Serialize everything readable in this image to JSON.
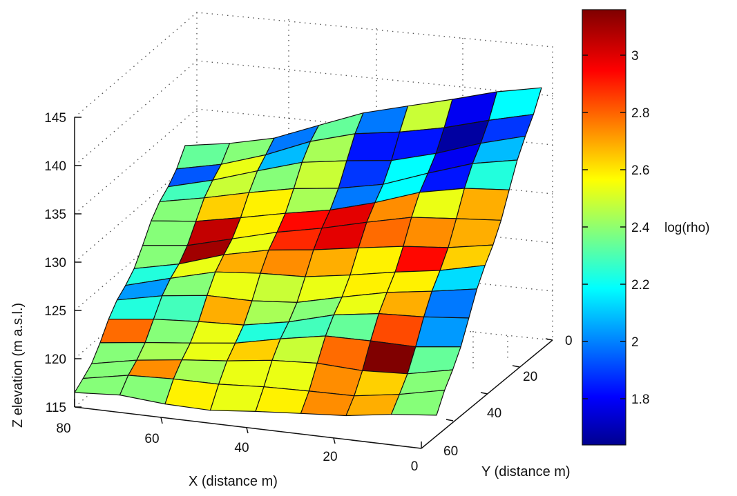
{
  "chart_data": {
    "type": "surface",
    "xlabel": "X (distance m)",
    "ylabel": "Y (distance m)",
    "zlabel": "Z elevation (m a.s.l.)",
    "colorbar_label": "log(rho)",
    "colormap": "jet",
    "x_ticks": [
      "80",
      "60",
      "40",
      "20",
      "0"
    ],
    "y_ticks": [
      "0",
      "20",
      "40",
      "60"
    ],
    "z_ticks": [
      "145",
      "140",
      "135",
      "130",
      "125",
      "120",
      "115"
    ],
    "colorbar_ticks": [
      "3",
      "2.8",
      "2.6",
      "2.4",
      "2.2",
      "2",
      "1.8"
    ],
    "xlim": [
      0,
      80
    ],
    "ylim": [
      0,
      60
    ],
    "zlim": [
      115,
      145
    ],
    "clim": [
      1.63,
      3.15
    ],
    "grid": true,
    "surface": {
      "rows": 13,
      "cols": 8,
      "note_rows": "row 0 = top (high Z, back), row 12 = bottom (low Z, front)",
      "log_rho": [
        [
          2.35,
          2.4,
          2.0,
          2.35,
          2.0,
          2.5,
          1.8,
          2.2
        ],
        [
          1.95,
          2.55,
          2.1,
          2.45,
          1.85,
          1.85,
          1.68,
          1.9
        ],
        [
          2.3,
          2.5,
          2.4,
          2.5,
          1.9,
          2.2,
          1.8,
          2.1
        ],
        [
          2.4,
          2.65,
          2.6,
          2.45,
          2.0,
          2.2,
          1.85,
          2.25
        ],
        [
          2.4,
          3.05,
          2.6,
          2.95,
          3.0,
          2.75,
          2.55,
          2.7
        ],
        [
          2.4,
          3.1,
          2.55,
          2.9,
          3.0,
          2.8,
          2.75,
          2.7
        ],
        [
          2.25,
          2.55,
          2.7,
          2.75,
          2.7,
          2.6,
          2.95,
          2.65
        ],
        [
          2.05,
          2.4,
          2.55,
          2.5,
          2.55,
          2.6,
          2.6,
          2.15
        ],
        [
          2.25,
          2.3,
          2.7,
          2.45,
          2.4,
          2.55,
          2.7,
          2.0
        ],
        [
          2.8,
          2.4,
          2.55,
          2.25,
          2.3,
          2.35,
          2.85,
          2.05
        ],
        [
          2.4,
          2.45,
          2.55,
          2.65,
          2.5,
          2.8,
          3.15,
          2.35
        ],
        [
          2.4,
          2.75,
          2.45,
          2.55,
          2.55,
          2.75,
          2.65,
          2.4
        ],
        [
          2.4,
          2.4,
          2.6,
          2.55,
          2.6,
          2.75,
          2.7,
          2.4
        ]
      ]
    }
  }
}
